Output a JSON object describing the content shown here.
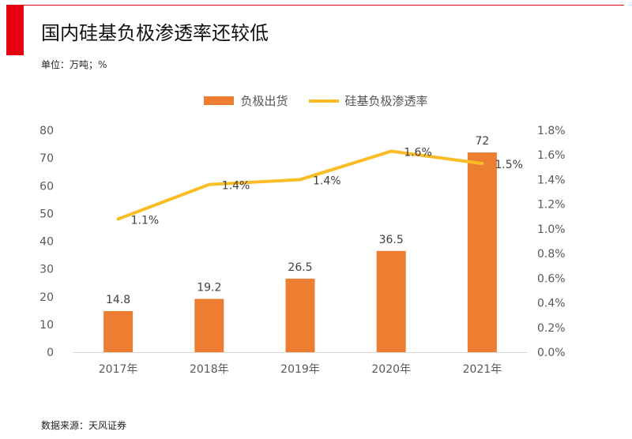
{
  "header": {
    "title": "国内硅基负极渗透率还较低",
    "unit": "单位：万吨；%",
    "source": "数据来源：天风证券"
  },
  "colors": {
    "accent": "#e60012",
    "bar": "#ed7d31",
    "line": "#fbbd25"
  },
  "chart_data": {
    "type": "bar",
    "categories": [
      "2017年",
      "2018年",
      "2019年",
      "2020年",
      "2021年"
    ],
    "series": [
      {
        "name": "负极出货",
        "type": "bar",
        "axis": "left",
        "values": [
          14.8,
          19.2,
          26.5,
          36.5,
          72
        ],
        "labels": [
          "14.8",
          "19.2",
          "26.5",
          "36.5",
          "72"
        ]
      },
      {
        "name": "硅基负极渗透率",
        "type": "line",
        "axis": "right",
        "values": [
          1.08,
          1.36,
          1.4,
          1.63,
          1.53
        ],
        "labels": [
          "1.1%",
          "1.4%",
          "1.4%",
          "1.6%",
          "1.5%"
        ]
      }
    ],
    "ylim": [
      0,
      80
    ],
    "y_ticks": [
      "0",
      "10",
      "20",
      "30",
      "40",
      "50",
      "60",
      "70",
      "80"
    ],
    "y2lim": [
      0,
      1.8
    ],
    "y2_ticks": [
      "0.0%",
      "0.2%",
      "0.4%",
      "0.6%",
      "0.8%",
      "1.0%",
      "1.2%",
      "1.4%",
      "1.6%",
      "1.8%"
    ],
    "legend_position": "top",
    "grid": false
  }
}
